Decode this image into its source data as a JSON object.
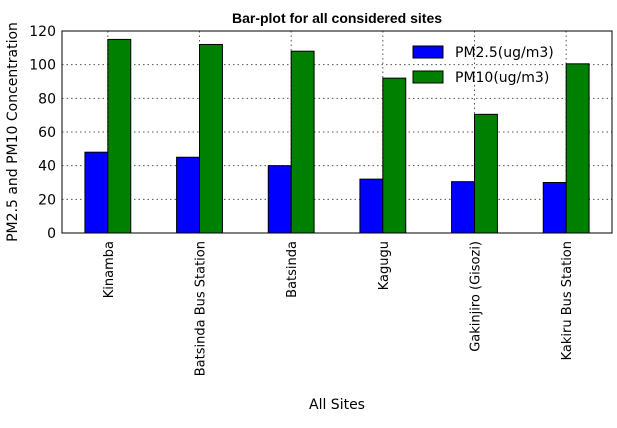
{
  "chart_data": {
    "type": "bar",
    "title": "Bar-plot for all considered sites",
    "xlabel": "All Sites",
    "ylabel": "PM2.5 and PM10 Concentration",
    "ylim": [
      0,
      120
    ],
    "yticks": [
      0,
      20,
      40,
      60,
      80,
      100,
      120
    ],
    "grid": true,
    "legend_position": "top-right",
    "categories": [
      "Kinamba",
      "Batsinda Bus Station",
      "Batsinda",
      "Kagugu",
      "Gakinjiro (Gisozi)",
      "Kakiru Bus Station"
    ],
    "series": [
      {
        "name": "PM2.5(ug/m3)",
        "color": "#0000ff",
        "values": [
          48,
          45,
          40,
          32,
          30.5,
          30
        ]
      },
      {
        "name": "PM10(ug/m3)",
        "color": "#008000",
        "values": [
          115,
          112,
          108,
          92,
          70.5,
          100.5
        ]
      }
    ]
  }
}
